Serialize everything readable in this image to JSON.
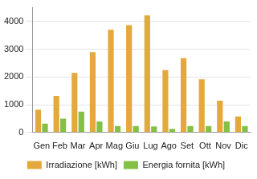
{
  "chart_data": {
    "type": "bar",
    "categories": [
      "Gen",
      "Feb",
      "Mar",
      "Apr",
      "Mag",
      "Giu",
      "Lug",
      "Ago",
      "Set",
      "Ott",
      "Nov",
      "Dic"
    ],
    "series": [
      {
        "name": "Irradiazione [kWh]",
        "color": "#e4a93c",
        "values": [
          820,
          1320,
          2150,
          2900,
          3700,
          3870,
          4220,
          2250,
          2680,
          1920,
          1150,
          580
        ]
      },
      {
        "name": "Energia fornita [kWh]",
        "color": "#84c043",
        "values": [
          320,
          500,
          750,
          400,
          230,
          230,
          220,
          130,
          230,
          230,
          400,
          230
        ]
      }
    ],
    "ylim": [
      0,
      4500
    ],
    "yticks": [
      0,
      1000,
      2000,
      3000,
      4000
    ],
    "grid": true,
    "legend": "bottom"
  }
}
